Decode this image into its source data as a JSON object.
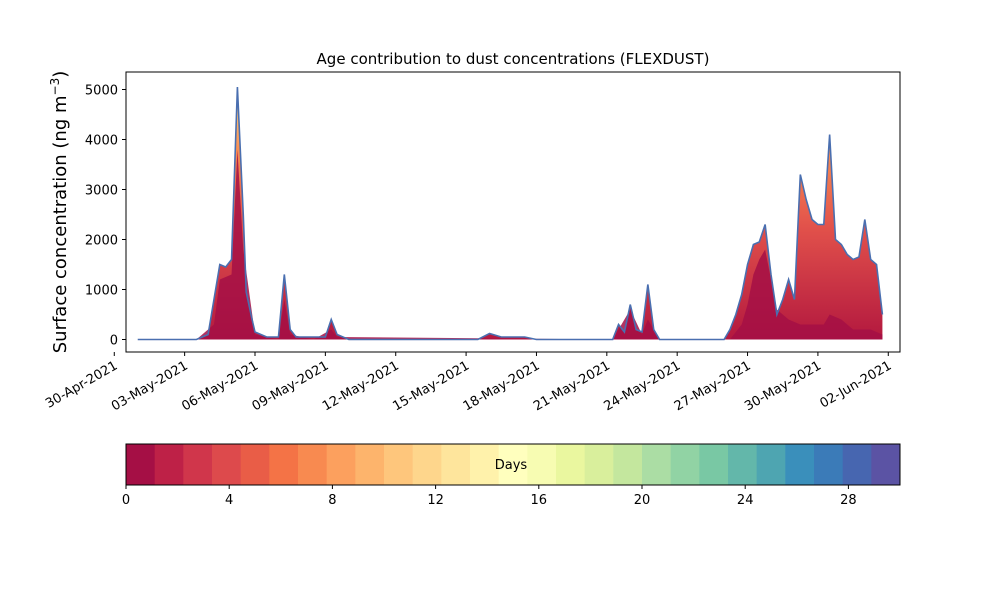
{
  "chart_data": {
    "type": "area",
    "title": "Age contribution to dust concentrations (FLEXDUST)",
    "ylabel": "Surface concentration (ng m",
    "ylabel_unit_exponent": "−3",
    "ylabel_close": ")",
    "xlabel": "",
    "ylim": [
      -250,
      5350
    ],
    "xlim": [
      "2021-04-30T12:00",
      "2021-06-02T12:00"
    ],
    "grid": false,
    "y_ticks": [
      0,
      1000,
      2000,
      3000,
      4000,
      5000
    ],
    "x_ticks": [
      {
        "date": "2021-04-30",
        "label": "30-Apr-2021"
      },
      {
        "date": "2021-05-03",
        "label": "03-May-2021"
      },
      {
        "date": "2021-05-06",
        "label": "06-May-2021"
      },
      {
        "date": "2021-05-09",
        "label": "09-May-2021"
      },
      {
        "date": "2021-05-12",
        "label": "12-May-2021"
      },
      {
        "date": "2021-05-15",
        "label": "15-May-2021"
      },
      {
        "date": "2021-05-18",
        "label": "18-May-2021"
      },
      {
        "date": "2021-05-21",
        "label": "21-May-2021"
      },
      {
        "date": "2021-05-24",
        "label": "24-May-2021"
      },
      {
        "date": "2021-05-27",
        "label": "27-May-2021"
      },
      {
        "date": "2021-05-30",
        "label": "30-May-2021"
      },
      {
        "date": "2021-06-02",
        "label": "02-Jun-2021"
      }
    ],
    "series": [
      {
        "color": "#4a6fb0",
        "x": [
          "2021-05-01T00:00",
          "2021-05-02T00:00",
          "2021-05-03T00:00",
          "2021-05-03T12:00",
          "2021-05-04T00:00",
          "2021-05-04T06:00",
          "2021-05-04T12:00",
          "2021-05-04T18:00",
          "2021-05-05T00:00",
          "2021-05-05T06:00",
          "2021-05-05T12:00",
          "2021-05-05T15:00",
          "2021-05-05T21:00",
          "2021-05-06T00:00",
          "2021-05-06T06:00",
          "2021-05-06T12:00",
          "2021-05-07T00:00",
          "2021-05-07T06:00",
          "2021-05-07T12:00",
          "2021-05-07T18:00",
          "2021-05-08T00:00",
          "2021-05-08T12:00",
          "2021-05-09T00:00",
          "2021-05-09T06:00",
          "2021-05-09T12:00",
          "2021-05-10T00:00",
          "2021-05-11T00:00",
          "2021-05-12T00:00",
          "2021-05-13T00:00",
          "2021-05-14T00:00",
          "2021-05-15T00:00",
          "2021-05-15T12:00",
          "2021-05-16T00:00",
          "2021-05-16T12:00",
          "2021-05-17T00:00",
          "2021-05-17T12:00",
          "2021-05-18T00:00",
          "2021-05-19T00:00",
          "2021-05-20T00:00",
          "2021-05-20T12:00",
          "2021-05-21T00:00",
          "2021-05-21T06:00",
          "2021-05-21T12:00",
          "2021-05-21T18:00",
          "2021-05-22T00:00",
          "2021-05-22T06:00",
          "2021-05-22T12:00",
          "2021-05-22T18:00",
          "2021-05-23T00:00",
          "2021-05-23T06:00",
          "2021-05-23T12:00",
          "2021-05-24T00:00",
          "2021-05-25T00:00",
          "2021-05-25T12:00",
          "2021-05-26T00:00",
          "2021-05-26T06:00",
          "2021-05-26T12:00",
          "2021-05-26T18:00",
          "2021-05-27T00:00",
          "2021-05-27T06:00",
          "2021-05-27T12:00",
          "2021-05-27T18:00",
          "2021-05-28T00:00",
          "2021-05-28T06:00",
          "2021-05-28T12:00",
          "2021-05-28T18:00",
          "2021-05-29T00:00",
          "2021-05-29T06:00",
          "2021-05-29T12:00",
          "2021-05-29T18:00",
          "2021-05-30T00:00",
          "2021-05-30T06:00",
          "2021-05-30T12:00",
          "2021-05-30T18:00",
          "2021-05-31T00:00",
          "2021-05-31T06:00",
          "2021-05-31T12:00",
          "2021-05-31T18:00",
          "2021-06-01T00:00",
          "2021-06-01T06:00",
          "2021-06-01T12:00",
          "2021-06-01T18:00"
        ],
        "values": [
          0,
          0,
          0,
          0,
          100,
          800,
          1500,
          1450,
          1600,
          5050,
          2500,
          950,
          400,
          150,
          100,
          50,
          50,
          1300,
          200,
          50,
          50,
          50,
          50,
          400,
          100,
          0,
          0,
          0,
          0,
          0,
          0,
          0,
          120,
          50,
          50,
          50,
          0,
          0,
          0,
          0,
          0,
          0,
          300,
          150,
          700,
          200,
          150,
          1100,
          200,
          0,
          0,
          0,
          0,
          0,
          0,
          200,
          500,
          900,
          1500,
          1900,
          1950,
          2300,
          1300,
          500,
          800,
          1200,
          800,
          3300,
          2800,
          2400,
          2300,
          2300,
          4100,
          2000,
          1900,
          1700,
          1600,
          1650,
          2400,
          1600,
          1500,
          500
        ]
      },
      {
        "color": "#a50f45",
        "x": [
          "2021-05-01T00:00",
          "2021-05-03T12:00",
          "2021-05-04T06:00",
          "2021-05-04T12:00",
          "2021-05-05T00:00",
          "2021-05-05T06:00",
          "2021-05-05T12:00",
          "2021-05-06T00:00",
          "2021-05-07T00:00",
          "2021-05-07T06:00",
          "2021-05-07T12:00",
          "2021-05-08T12:00",
          "2021-05-09T06:00",
          "2021-05-09T12:00",
          "2021-05-21T06:00",
          "2021-05-21T12:00",
          "2021-05-22T00:00",
          "2021-05-22T12:00",
          "2021-05-22T18:00",
          "2021-05-23T06:00",
          "2021-05-26T06:00",
          "2021-05-26T18:00",
          "2021-05-27T00:00",
          "2021-05-27T06:00",
          "2021-05-27T12:00",
          "2021-05-27T18:00",
          "2021-05-28T06:00",
          "2021-05-28T18:00",
          "2021-05-29T06:00",
          "2021-05-29T18:00",
          "2021-05-30T06:00",
          "2021-05-30T12:00",
          "2021-05-31T00:00",
          "2021-05-31T12:00",
          "2021-06-01T06:00",
          "2021-06-01T18:00"
        ],
        "values": [
          0,
          0,
          300,
          1200,
          1300,
          3800,
          1800,
          100,
          0,
          800,
          100,
          0,
          200,
          50,
          0,
          200,
          600,
          100,
          400,
          0,
          0,
          300,
          700,
          1300,
          1600,
          1800,
          600,
          400,
          300,
          300,
          300,
          500,
          400,
          200,
          200,
          100
        ]
      }
    ],
    "colorbar": {
      "label": "Days",
      "ticks": [
        0,
        4,
        8,
        12,
        16,
        20,
        24,
        28
      ],
      "range": [
        0,
        30
      ],
      "colors": [
        "#a50f45",
        "#be2147",
        "#d0364b",
        "#dd4a4c",
        "#e95d47",
        "#f47346",
        "#f88a50",
        "#fca05e",
        "#fdb46c",
        "#fec67c",
        "#fed68c",
        "#fee59c",
        "#fff2ab",
        "#ffffbe",
        "#f7fcb2",
        "#eaf79f",
        "#d9ef9c",
        "#c4e79e",
        "#abdda4",
        "#91d3a4",
        "#79c8a4",
        "#63b7aa",
        "#4ea5b1",
        "#3a8fbb",
        "#3b7bb8",
        "#4766b0",
        "#5b53a4"
      ]
    }
  }
}
